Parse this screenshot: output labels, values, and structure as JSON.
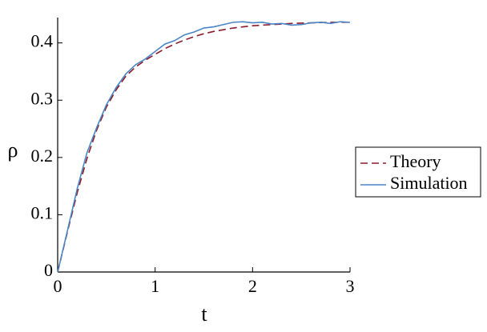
{
  "chart_data": {
    "type": "line",
    "x_label": "t",
    "y_label": "ρ",
    "x": [
      0,
      0.1,
      0.2,
      0.3,
      0.4,
      0.5,
      0.6,
      0.7,
      0.8,
      0.9,
      1.0,
      1.1,
      1.2,
      1.3,
      1.4,
      1.5,
      1.6,
      1.7,
      1.8,
      1.9,
      2.0,
      2.1,
      2.2,
      2.3,
      2.4,
      2.5,
      2.6,
      2.7,
      2.8,
      2.9,
      3.0
    ],
    "series": [
      {
        "name": "Theory",
        "color": "#8b1a2b",
        "dashed": true,
        "values": [
          0,
          0.07,
          0.138,
          0.198,
          0.248,
          0.288,
          0.318,
          0.342,
          0.358,
          0.37,
          0.38,
          0.39,
          0.398,
          0.405,
          0.411,
          0.416,
          0.42,
          0.423,
          0.426,
          0.428,
          0.43,
          0.431,
          0.432,
          0.433,
          0.434,
          0.4345,
          0.435,
          0.4355,
          0.436,
          0.436,
          0.436
        ]
      },
      {
        "name": "Simulation",
        "color": "#4a86c5",
        "dashed": false,
        "values": [
          0,
          0.072,
          0.145,
          0.208,
          0.252,
          0.292,
          0.322,
          0.346,
          0.362,
          0.372,
          0.385,
          0.398,
          0.404,
          0.414,
          0.419,
          0.426,
          0.428,
          0.432,
          0.436,
          0.437,
          0.435,
          0.436,
          0.433,
          0.434,
          0.431,
          0.432,
          0.435,
          0.436,
          0.434,
          0.437,
          0.436
        ]
      }
    ],
    "xlim": [
      0,
      3
    ],
    "xticks": [
      0,
      1,
      2,
      3
    ],
    "ylim": [
      0,
      0.44
    ],
    "yticks": [
      0,
      0.1,
      0.2,
      0.3,
      0.4
    ],
    "legend": "right"
  }
}
